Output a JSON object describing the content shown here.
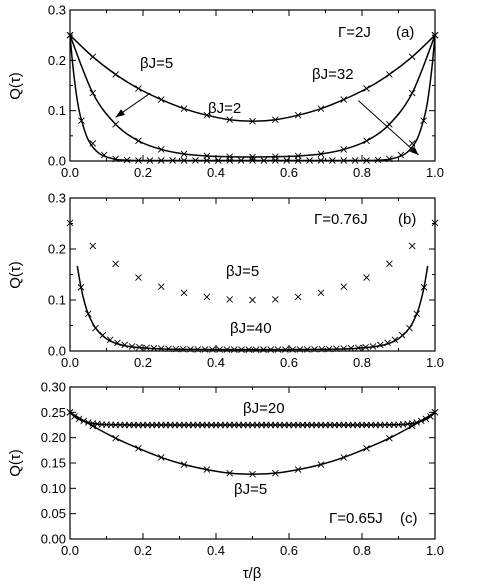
{
  "xlabel": "τ/β",
  "chart_data": [
    {
      "type": "line",
      "panel": "a",
      "title": "",
      "xlabel": "",
      "ylabel": "Q(τ)",
      "xlim": [
        0,
        1
      ],
      "ylim": [
        0,
        0.3
      ],
      "xticks": [
        0.0,
        0.2,
        0.4,
        0.6,
        0.8,
        1.0
      ],
      "xtick_labels": [
        "0.0",
        "0.2",
        "0.4",
        "0.6",
        "0.8",
        "1.0"
      ],
      "yticks": [
        0.0,
        0.1,
        0.2,
        0.3
      ],
      "ytick_labels": [
        "0.0",
        "0.1",
        "0.2",
        "0.3"
      ],
      "grid": false,
      "legend": "none",
      "annotations": [
        "Γ=2J",
        "(a)",
        "βJ=5",
        "βJ=2",
        "βJ=32"
      ],
      "series": [
        {
          "name": "βJ=2",
          "x": [
            0,
            0.0625,
            0.125,
            0.1875,
            0.25,
            0.3125,
            0.375,
            0.4375,
            0.5,
            0.5625,
            0.625,
            0.6875,
            0.75,
            0.8125,
            0.875,
            0.9375,
            1.0
          ],
          "y": [
            0.25,
            0.207,
            0.172,
            0.144,
            0.122,
            0.104,
            0.091,
            0.082,
            0.079,
            0.082,
            0.091,
            0.104,
            0.122,
            0.144,
            0.172,
            0.207,
            0.25
          ],
          "line_y": [
            0.25,
            0.207,
            0.172,
            0.144,
            0.122,
            0.104,
            0.091,
            0.082,
            0.079,
            0.082,
            0.091,
            0.104,
            0.122,
            0.144,
            0.172,
            0.207,
            0.25
          ]
        },
        {
          "name": "βJ=5",
          "x": [
            0,
            0.0625,
            0.125,
            0.1875,
            0.25,
            0.3125,
            0.375,
            0.4375,
            0.5,
            0.5625,
            0.625,
            0.6875,
            0.75,
            0.8125,
            0.875,
            0.9375,
            1.0
          ],
          "y": [
            0.25,
            0.135,
            0.073,
            0.04,
            0.023,
            0.014,
            0.01,
            0.0085,
            0.008,
            0.0085,
            0.01,
            0.014,
            0.023,
            0.04,
            0.073,
            0.135,
            0.25
          ],
          "line_y": [
            0.25,
            0.135,
            0.073,
            0.04,
            0.023,
            0.014,
            0.01,
            0.0085,
            0.008,
            0.0085,
            0.01,
            0.014,
            0.023,
            0.04,
            0.073,
            0.135,
            0.25
          ]
        },
        {
          "name": "βJ=32",
          "x": [
            0,
            0.005,
            0.01,
            0.02,
            0.03,
            0.05,
            0.08,
            0.12,
            0.16,
            0.2,
            0.25,
            0.3,
            0.35,
            0.4,
            0.45,
            0.5,
            0.55,
            0.6,
            0.65,
            0.7,
            0.75,
            0.8,
            0.84,
            0.88,
            0.92,
            0.95,
            0.97,
            0.98,
            0.99,
            0.995,
            1.0
          ],
          "y": [
            0.25,
            0.21,
            0.175,
            0.12,
            0.085,
            0.042,
            0.015,
            0.004,
            0.0015,
            0.001,
            0.001,
            0.001,
            0.001,
            0.001,
            0.001,
            0.001,
            0.001,
            0.001,
            0.001,
            0.001,
            0.001,
            0.001,
            0.0015,
            0.004,
            0.015,
            0.042,
            0.085,
            0.12,
            0.175,
            0.21,
            0.25
          ],
          "marker_x": [
            0.0,
            0.03125,
            0.0625,
            0.09375,
            0.125,
            0.15625,
            0.1875,
            0.21875,
            0.25,
            0.28125,
            0.3125,
            0.34375,
            0.375,
            0.40625,
            0.4375,
            0.46875,
            0.5,
            0.53125,
            0.5625,
            0.59375,
            0.625,
            0.65625,
            0.6875,
            0.71875,
            0.75,
            0.78125,
            0.8125,
            0.84375,
            0.875,
            0.90625,
            0.9375,
            0.96875,
            1.0
          ],
          "marker_y": [
            0.25,
            0.08,
            0.035,
            0.012,
            0.004,
            0.002,
            0.001,
            0.001,
            0.001,
            0.001,
            0.001,
            0.001,
            0.001,
            0.001,
            0.001,
            0.001,
            0.001,
            0.001,
            0.001,
            0.001,
            0.001,
            0.001,
            0.001,
            0.001,
            0.001,
            0.001,
            0.001,
            0.002,
            0.004,
            0.012,
            0.035,
            0.08,
            0.25
          ]
        }
      ],
      "arrows": [
        {
          "label": "βJ=5",
          "from": [
            0.22,
            0.135
          ],
          "to": [
            0.125,
            0.087
          ]
        },
        {
          "label": "βJ=32",
          "from": [
            0.79,
            0.12
          ],
          "to": [
            0.955,
            0.012
          ]
        }
      ]
    },
    {
      "type": "line",
      "panel": "b",
      "title": "",
      "xlabel": "",
      "ylabel": "Q(τ)",
      "xlim": [
        0,
        1
      ],
      "ylim": [
        0,
        0.3
      ],
      "xticks": [
        0.0,
        0.2,
        0.4,
        0.6,
        0.8,
        1.0
      ],
      "xtick_labels": [
        "0.0",
        "0.2",
        "0.4",
        "0.6",
        "0.8",
        "1.0"
      ],
      "yticks": [
        0.0,
        0.1,
        0.2,
        0.3
      ],
      "ytick_labels": [
        "0.0",
        "0.1",
        "0.2",
        "0.3"
      ],
      "grid": false,
      "legend": "none",
      "annotations": [
        "Γ=0.76J",
        "(b)",
        "βJ=5",
        "βJ=40"
      ],
      "series": [
        {
          "name": "βJ=5",
          "marker_x": [
            0.0,
            0.0625,
            0.125,
            0.1875,
            0.25,
            0.3125,
            0.375,
            0.4375,
            0.5,
            0.5625,
            0.625,
            0.6875,
            0.75,
            0.8125,
            0.875,
            0.9375,
            1.0
          ],
          "marker_y": [
            0.251,
            0.206,
            0.171,
            0.144,
            0.126,
            0.114,
            0.106,
            0.101,
            0.1,
            0.101,
            0.106,
            0.114,
            0.126,
            0.144,
            0.171,
            0.206,
            0.251
          ]
        },
        {
          "name": "βJ=40",
          "x": [
            0.02,
            0.03,
            0.04,
            0.05,
            0.07,
            0.1,
            0.13,
            0.17,
            0.22,
            0.28,
            0.35,
            0.42,
            0.5,
            0.58,
            0.65,
            0.72,
            0.78,
            0.83,
            0.87,
            0.9,
            0.93,
            0.95,
            0.96,
            0.97,
            0.98
          ],
          "y": [
            0.167,
            0.125,
            0.095,
            0.073,
            0.045,
            0.024,
            0.014,
            0.008,
            0.005,
            0.0035,
            0.003,
            0.0028,
            0.0027,
            0.0028,
            0.003,
            0.0035,
            0.005,
            0.008,
            0.014,
            0.024,
            0.045,
            0.073,
            0.095,
            0.125,
            0.167
          ],
          "marker_x": [
            0.03,
            0.05,
            0.07,
            0.09,
            0.11,
            0.13,
            0.15,
            0.17,
            0.19,
            0.21,
            0.23,
            0.25,
            0.27,
            0.29,
            0.31,
            0.33,
            0.35,
            0.37,
            0.39,
            0.41,
            0.43,
            0.45,
            0.47,
            0.49,
            0.51,
            0.53,
            0.55,
            0.57,
            0.59,
            0.61,
            0.63,
            0.65,
            0.67,
            0.69,
            0.71,
            0.73,
            0.75,
            0.77,
            0.79,
            0.81,
            0.83,
            0.85,
            0.87,
            0.89,
            0.91,
            0.93,
            0.95,
            0.97
          ],
          "marker_y": [
            0.125,
            0.073,
            0.045,
            0.031,
            0.022,
            0.016,
            0.012,
            0.009,
            0.0075,
            0.0062,
            0.0054,
            0.0047,
            0.0042,
            0.0038,
            0.0035,
            0.0033,
            0.0031,
            0.003,
            0.0029,
            0.0028,
            0.0028,
            0.0027,
            0.0027,
            0.0027,
            0.0027,
            0.0027,
            0.0027,
            0.0028,
            0.0028,
            0.0029,
            0.003,
            0.0031,
            0.0033,
            0.0035,
            0.0038,
            0.0042,
            0.0047,
            0.0054,
            0.0062,
            0.0075,
            0.009,
            0.012,
            0.016,
            0.022,
            0.031,
            0.045,
            0.073,
            0.125
          ]
        }
      ]
    },
    {
      "type": "line",
      "panel": "c",
      "title": "",
      "xlabel": "τ/β",
      "ylabel": "Q(τ)",
      "xlim": [
        0,
        1
      ],
      "ylim": [
        0,
        0.3
      ],
      "xticks": [
        0.0,
        0.2,
        0.4,
        0.6,
        0.8,
        1.0
      ],
      "xtick_labels": [
        "0.0",
        "0.2",
        "0.4",
        "0.6",
        "0.8",
        "1.0"
      ],
      "yticks": [
        0.0,
        0.05,
        0.1,
        0.15,
        0.2,
        0.25,
        0.3
      ],
      "ytick_labels": [
        "0.00",
        "0.05",
        "0.10",
        "0.15",
        "0.20",
        "0.25",
        "0.30"
      ],
      "grid": false,
      "legend": "none",
      "annotations": [
        "βJ=20",
        "βJ=5",
        "Γ=0.65J",
        "(c)"
      ],
      "series": [
        {
          "name": "βJ=20",
          "x": [
            0,
            0.01,
            0.02,
            0.04,
            0.06,
            0.09,
            0.12,
            0.2,
            0.3,
            0.4,
            0.5,
            0.6,
            0.7,
            0.8,
            0.88,
            0.91,
            0.94,
            0.96,
            0.98,
            0.99,
            1.0
          ],
          "y": [
            0.25,
            0.243,
            0.238,
            0.232,
            0.228,
            0.226,
            0.2255,
            0.225,
            0.225,
            0.225,
            0.225,
            0.225,
            0.225,
            0.225,
            0.2255,
            0.226,
            0.228,
            0.232,
            0.238,
            0.243,
            0.25
          ],
          "marker_x": [
            0.0,
            0.0125,
            0.025,
            0.0375,
            0.05,
            0.0625,
            0.075,
            0.0875,
            0.1,
            0.1125,
            0.125,
            0.1375,
            0.15,
            0.1625,
            0.175,
            0.1875,
            0.2,
            0.2125,
            0.225,
            0.2375,
            0.25,
            0.2625,
            0.275,
            0.2875,
            0.3,
            0.3125,
            0.325,
            0.3375,
            0.35,
            0.3625,
            0.375,
            0.3875,
            0.4,
            0.4125,
            0.425,
            0.4375,
            0.45,
            0.4625,
            0.475,
            0.4875,
            0.5,
            0.5125,
            0.525,
            0.5375,
            0.55,
            0.5625,
            0.575,
            0.5875,
            0.6,
            0.6125,
            0.625,
            0.6375,
            0.65,
            0.6625,
            0.675,
            0.6875,
            0.7,
            0.7125,
            0.725,
            0.7375,
            0.75,
            0.7625,
            0.775,
            0.7875,
            0.8,
            0.8125,
            0.825,
            0.8375,
            0.85,
            0.8625,
            0.875,
            0.8875,
            0.9,
            0.9125,
            0.925,
            0.9375,
            0.95,
            0.9625,
            0.975,
            0.9875,
            1.0
          ],
          "marker_y": [
            0.25,
            0.242,
            0.237,
            0.233,
            0.23,
            0.228,
            0.227,
            0.226,
            0.2257,
            0.2254,
            0.2252,
            0.2251,
            0.225,
            0.225,
            0.225,
            0.225,
            0.225,
            0.225,
            0.225,
            0.225,
            0.225,
            0.225,
            0.225,
            0.225,
            0.225,
            0.225,
            0.225,
            0.225,
            0.225,
            0.225,
            0.225,
            0.225,
            0.225,
            0.225,
            0.225,
            0.225,
            0.225,
            0.225,
            0.225,
            0.225,
            0.225,
            0.225,
            0.225,
            0.225,
            0.225,
            0.225,
            0.225,
            0.225,
            0.225,
            0.225,
            0.225,
            0.225,
            0.225,
            0.225,
            0.225,
            0.225,
            0.225,
            0.225,
            0.225,
            0.225,
            0.225,
            0.225,
            0.225,
            0.225,
            0.225,
            0.225,
            0.225,
            0.225,
            0.225,
            0.2251,
            0.2252,
            0.2254,
            0.2257,
            0.226,
            0.227,
            0.228,
            0.23,
            0.233,
            0.237,
            0.242,
            0.25
          ]
        },
        {
          "name": "βJ=5",
          "x": [
            0,
            0.0625,
            0.125,
            0.1875,
            0.25,
            0.3125,
            0.375,
            0.4375,
            0.5,
            0.5625,
            0.625,
            0.6875,
            0.75,
            0.8125,
            0.875,
            0.9375,
            1.0
          ],
          "y": [
            0.25,
            0.223,
            0.199,
            0.179,
            0.161,
            0.147,
            0.137,
            0.13,
            0.128,
            0.13,
            0.137,
            0.147,
            0.161,
            0.179,
            0.199,
            0.223,
            0.25
          ],
          "marker_x": [
            0,
            0.0625,
            0.125,
            0.1875,
            0.25,
            0.3125,
            0.375,
            0.4375,
            0.5,
            0.5625,
            0.625,
            0.6875,
            0.75,
            0.8125,
            0.875,
            0.9375,
            1.0
          ],
          "marker_y": [
            0.25,
            0.223,
            0.199,
            0.179,
            0.161,
            0.147,
            0.137,
            0.13,
            0.128,
            0.13,
            0.137,
            0.147,
            0.161,
            0.179,
            0.199,
            0.223,
            0.25
          ]
        }
      ]
    }
  ]
}
